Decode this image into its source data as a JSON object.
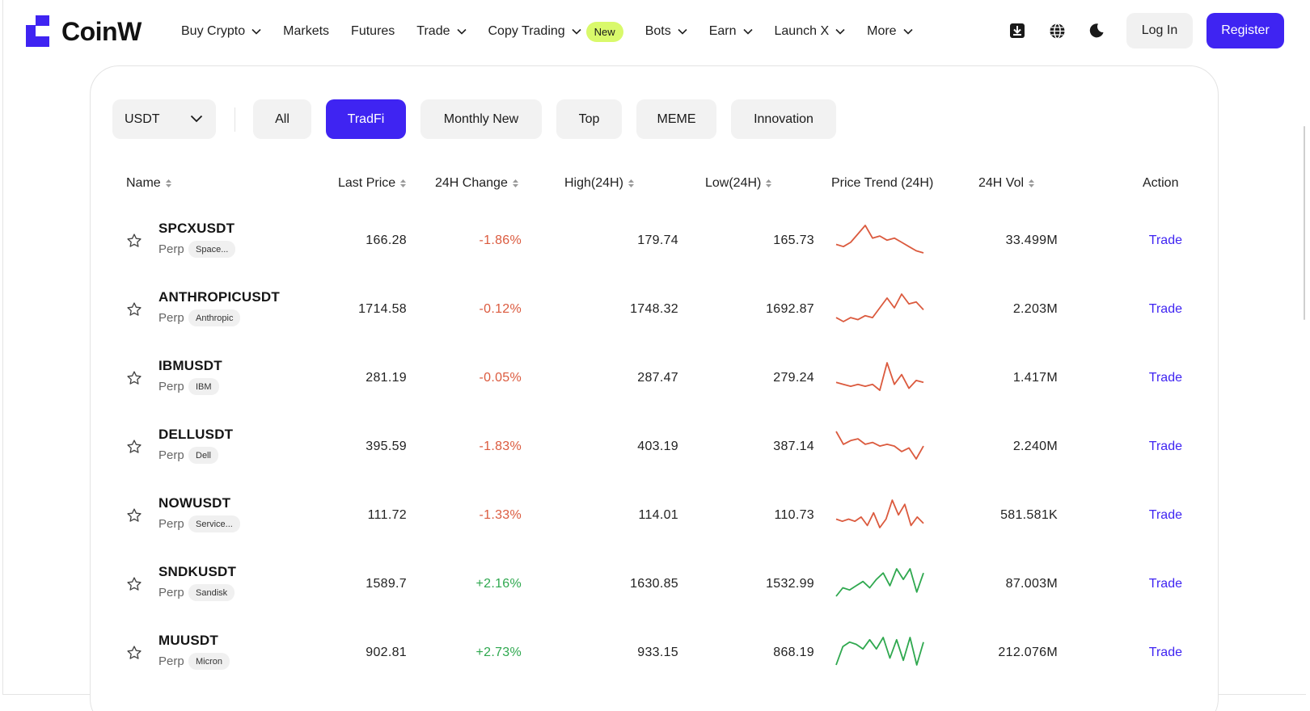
{
  "brand": {
    "name": "CoinW",
    "color": "#3f24f2"
  },
  "nav": [
    {
      "label": "Buy Crypto",
      "dropdown": true
    },
    {
      "label": "Markets",
      "dropdown": false
    },
    {
      "label": "Futures",
      "dropdown": false
    },
    {
      "label": "Trade",
      "dropdown": true
    },
    {
      "label": "Copy Trading",
      "dropdown": true,
      "badge": "New"
    },
    {
      "label": "Bots",
      "dropdown": true
    },
    {
      "label": "Earn",
      "dropdown": true
    },
    {
      "label": "Launch X",
      "dropdown": true
    },
    {
      "label": "More",
      "dropdown": true
    }
  ],
  "header_icons": [
    "download-icon",
    "globe-icon",
    "moon-icon"
  ],
  "auth": {
    "login": "Log In",
    "register": "Register"
  },
  "filters": {
    "quote": "USDT",
    "tabs": [
      "All",
      "TradFi",
      "Monthly New",
      "Top",
      "MEME",
      "Innovation"
    ],
    "active_tab": "TradFi"
  },
  "table": {
    "columns": {
      "name": "Name",
      "last_price": "Last Price",
      "change": "24H Change",
      "high": "High(24H)",
      "low": "Low(24H)",
      "trend": "Price Trend (24H)",
      "volume": "24H Vol",
      "action": "Action"
    },
    "rows": [
      {
        "symbol": "SPCXUSDT",
        "type": "Perp",
        "tag": "Space...",
        "last_price": "166.28",
        "change": "-1.86%",
        "high": "179.74",
        "low": "165.73",
        "volume": "33.499M",
        "action": "Trade",
        "trend": [
          5,
          4,
          6,
          10,
          14,
          8,
          9,
          7,
          8,
          6,
          4,
          2,
          1
        ]
      },
      {
        "symbol": "ANTHROPICUSDT",
        "type": "Perp",
        "tag": "Anthropic",
        "last_price": "1714.58",
        "change": "-0.12%",
        "high": "1748.32",
        "low": "1692.87",
        "volume": "2.203M",
        "action": "Trade",
        "trend": [
          3,
          1,
          3,
          2,
          4,
          3,
          8,
          13,
          8,
          15,
          10,
          11,
          7
        ]
      },
      {
        "symbol": "IBMUSDT",
        "type": "Perp",
        "tag": "IBM",
        "last_price": "281.19",
        "change": "-0.05%",
        "high": "287.47",
        "low": "279.24",
        "volume": "1.417M",
        "action": "Trade",
        "trend": [
          6,
          5,
          4,
          5,
          4,
          5,
          2,
          16,
          5,
          10,
          3,
          7,
          6
        ]
      },
      {
        "symbol": "DELLUSDT",
        "type": "Perp",
        "tag": "Dell",
        "last_price": "395.59",
        "change": "-1.83%",
        "high": "403.19",
        "low": "387.14",
        "volume": "2.240M",
        "action": "Trade",
        "trend": [
          16,
          9,
          11,
          12,
          9,
          10,
          8,
          9,
          8,
          5,
          7,
          1,
          8
        ]
      },
      {
        "symbol": "NOWUSDT",
        "type": "Perp",
        "tag": "Service...",
        "last_price": "111.72",
        "change": "-1.33%",
        "high": "114.01",
        "low": "110.73",
        "volume": "581.581K",
        "action": "Trade",
        "trend": [
          6,
          5,
          6,
          5,
          7,
          3,
          9,
          2,
          6,
          15,
          8,
          13,
          3,
          7,
          4
        ]
      },
      {
        "symbol": "SNDKUSDT",
        "type": "Perp",
        "tag": "Sandisk",
        "last_price": "1589.7",
        "change": "+2.16%",
        "high": "1630.85",
        "low": "1532.99",
        "volume": "87.003M",
        "action": "Trade",
        "trend": [
          1,
          5,
          4,
          6,
          8,
          5,
          9,
          12,
          6,
          14,
          9,
          14,
          3,
          12
        ]
      },
      {
        "symbol": "MUUSDT",
        "type": "Perp",
        "tag": "Micron",
        "last_price": "902.81",
        "change": "+2.73%",
        "high": "933.15",
        "low": "868.19",
        "volume": "212.076M",
        "action": "Trade",
        "trend": [
          2,
          10,
          12,
          11,
          9,
          13,
          9,
          14,
          5,
          13,
          4,
          14,
          2,
          12
        ]
      }
    ]
  },
  "colors": {
    "negative": "#db5a3e",
    "positive": "#2fa84f",
    "accent": "#3f24f2",
    "badge": "#d9f96b"
  }
}
